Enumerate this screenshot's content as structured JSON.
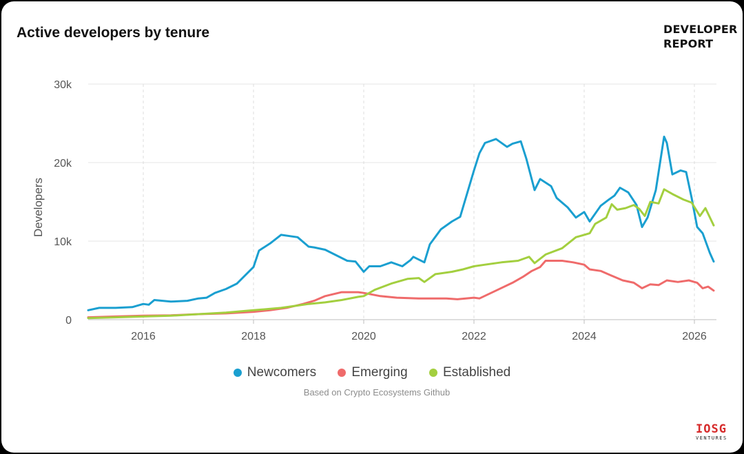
{
  "title": "Active developers by tenure",
  "brand": {
    "line1": "DEVELOPER",
    "line2": "REPORT"
  },
  "source_note": "Based on Crypto Ecosystems Github",
  "logo": {
    "main": "IOSG",
    "sub": "VENTURES"
  },
  "chart_data": {
    "type": "line",
    "title": "Active developers by tenure",
    "xlabel": "",
    "ylabel": "Developers",
    "xlim": [
      2015.0,
      2026.4
    ],
    "ylim": [
      0,
      30000
    ],
    "x_ticks": [
      2016,
      2018,
      2020,
      2022,
      2024,
      2026
    ],
    "x_tick_labels": [
      "2016",
      "2018",
      "2020",
      "2022",
      "2024",
      "2026"
    ],
    "y_ticks": [
      0,
      10000,
      20000,
      30000
    ],
    "y_tick_labels": [
      "0",
      "10k",
      "20k",
      "30k"
    ],
    "grid": {
      "y": "solid",
      "x": "dashed"
    },
    "legend_position": "bottom-center",
    "series": [
      {
        "name": "Newcomers",
        "color": "#1a9fd0",
        "points": [
          [
            2015.0,
            1200
          ],
          [
            2015.2,
            1500
          ],
          [
            2015.5,
            1500
          ],
          [
            2015.8,
            1600
          ],
          [
            2016.0,
            2000
          ],
          [
            2016.1,
            1900
          ],
          [
            2016.2,
            2500
          ],
          [
            2016.5,
            2300
          ],
          [
            2016.8,
            2400
          ],
          [
            2017.0,
            2700
          ],
          [
            2017.15,
            2800
          ],
          [
            2017.3,
            3400
          ],
          [
            2017.5,
            3900
          ],
          [
            2017.7,
            4600
          ],
          [
            2017.9,
            6000
          ],
          [
            2018.0,
            6700
          ],
          [
            2018.1,
            8800
          ],
          [
            2018.3,
            9700
          ],
          [
            2018.5,
            10800
          ],
          [
            2018.7,
            10600
          ],
          [
            2018.8,
            10500
          ],
          [
            2019.0,
            9300
          ],
          [
            2019.1,
            9200
          ],
          [
            2019.3,
            8900
          ],
          [
            2019.5,
            8200
          ],
          [
            2019.7,
            7500
          ],
          [
            2019.85,
            7400
          ],
          [
            2020.0,
            6100
          ],
          [
            2020.1,
            6800
          ],
          [
            2020.3,
            6800
          ],
          [
            2020.5,
            7300
          ],
          [
            2020.7,
            6800
          ],
          [
            2020.85,
            7600
          ],
          [
            2020.9,
            8000
          ],
          [
            2021.1,
            7300
          ],
          [
            2021.2,
            9600
          ],
          [
            2021.4,
            11500
          ],
          [
            2021.6,
            12500
          ],
          [
            2021.75,
            13100
          ],
          [
            2022.0,
            19000
          ],
          [
            2022.1,
            21200
          ],
          [
            2022.2,
            22500
          ],
          [
            2022.4,
            23000
          ],
          [
            2022.6,
            22000
          ],
          [
            2022.7,
            22400
          ],
          [
            2022.85,
            22700
          ],
          [
            2022.95,
            20500
          ],
          [
            2023.1,
            16500
          ],
          [
            2023.2,
            17900
          ],
          [
            2023.4,
            17000
          ],
          [
            2023.5,
            15500
          ],
          [
            2023.7,
            14300
          ],
          [
            2023.85,
            13000
          ],
          [
            2024.0,
            13700
          ],
          [
            2024.1,
            12500
          ],
          [
            2024.3,
            14500
          ],
          [
            2024.45,
            15300
          ],
          [
            2024.55,
            15800
          ],
          [
            2024.65,
            16800
          ],
          [
            2024.8,
            16200
          ],
          [
            2024.95,
            14600
          ],
          [
            2025.05,
            11800
          ],
          [
            2025.15,
            13000
          ],
          [
            2025.3,
            16500
          ],
          [
            2025.45,
            23300
          ],
          [
            2025.5,
            22500
          ],
          [
            2025.6,
            18500
          ],
          [
            2025.75,
            19000
          ],
          [
            2025.85,
            18800
          ],
          [
            2025.95,
            15500
          ],
          [
            2026.05,
            11800
          ],
          [
            2026.15,
            11000
          ],
          [
            2026.28,
            8500
          ],
          [
            2026.35,
            7400
          ]
        ]
      },
      {
        "name": "Emerging",
        "color": "#ef6b6b",
        "points": [
          [
            2015.0,
            300
          ],
          [
            2015.5,
            400
          ],
          [
            2016.0,
            500
          ],
          [
            2016.5,
            550
          ],
          [
            2017.0,
            700
          ],
          [
            2017.5,
            800
          ],
          [
            2018.0,
            1000
          ],
          [
            2018.3,
            1200
          ],
          [
            2018.6,
            1500
          ],
          [
            2018.9,
            2000
          ],
          [
            2019.1,
            2400
          ],
          [
            2019.3,
            3000
          ],
          [
            2019.6,
            3500
          ],
          [
            2019.9,
            3500
          ],
          [
            2020.0,
            3400
          ],
          [
            2020.3,
            3000
          ],
          [
            2020.6,
            2800
          ],
          [
            2021.0,
            2700
          ],
          [
            2021.5,
            2700
          ],
          [
            2021.7,
            2600
          ],
          [
            2022.0,
            2800
          ],
          [
            2022.1,
            2700
          ],
          [
            2022.4,
            3700
          ],
          [
            2022.7,
            4700
          ],
          [
            2022.9,
            5500
          ],
          [
            2023.05,
            6200
          ],
          [
            2023.2,
            6700
          ],
          [
            2023.3,
            7500
          ],
          [
            2023.6,
            7500
          ],
          [
            2023.8,
            7300
          ],
          [
            2024.0,
            7000
          ],
          [
            2024.1,
            6400
          ],
          [
            2024.3,
            6200
          ],
          [
            2024.5,
            5600
          ],
          [
            2024.7,
            5000
          ],
          [
            2024.9,
            4700
          ],
          [
            2025.05,
            4000
          ],
          [
            2025.2,
            4500
          ],
          [
            2025.35,
            4400
          ],
          [
            2025.5,
            5000
          ],
          [
            2025.7,
            4800
          ],
          [
            2025.9,
            5000
          ],
          [
            2026.05,
            4700
          ],
          [
            2026.15,
            4000
          ],
          [
            2026.25,
            4200
          ],
          [
            2026.35,
            3700
          ]
        ]
      },
      {
        "name": "Established",
        "color": "#a3cf3f",
        "points": [
          [
            2015.0,
            200
          ],
          [
            2015.5,
            300
          ],
          [
            2016.0,
            400
          ],
          [
            2016.5,
            500
          ],
          [
            2017.0,
            700
          ],
          [
            2017.5,
            900
          ],
          [
            2018.0,
            1200
          ],
          [
            2018.5,
            1500
          ],
          [
            2018.8,
            1800
          ],
          [
            2019.0,
            2000
          ],
          [
            2019.3,
            2200
          ],
          [
            2019.6,
            2500
          ],
          [
            2019.9,
            2900
          ],
          [
            2020.0,
            3000
          ],
          [
            2020.2,
            3800
          ],
          [
            2020.5,
            4600
          ],
          [
            2020.8,
            5200
          ],
          [
            2021.0,
            5300
          ],
          [
            2021.1,
            4800
          ],
          [
            2021.3,
            5800
          ],
          [
            2021.6,
            6100
          ],
          [
            2021.8,
            6400
          ],
          [
            2022.0,
            6800
          ],
          [
            2022.2,
            7000
          ],
          [
            2022.5,
            7300
          ],
          [
            2022.8,
            7500
          ],
          [
            2023.0,
            8000
          ],
          [
            2023.1,
            7200
          ],
          [
            2023.3,
            8300
          ],
          [
            2023.6,
            9100
          ],
          [
            2023.85,
            10500
          ],
          [
            2024.0,
            10800
          ],
          [
            2024.1,
            11000
          ],
          [
            2024.2,
            12200
          ],
          [
            2024.4,
            13000
          ],
          [
            2024.5,
            14700
          ],
          [
            2024.6,
            14000
          ],
          [
            2024.75,
            14200
          ],
          [
            2024.9,
            14600
          ],
          [
            2025.0,
            14100
          ],
          [
            2025.1,
            13200
          ],
          [
            2025.2,
            15000
          ],
          [
            2025.35,
            14800
          ],
          [
            2025.45,
            16600
          ],
          [
            2025.6,
            16000
          ],
          [
            2025.8,
            15300
          ],
          [
            2025.95,
            14900
          ],
          [
            2026.1,
            13200
          ],
          [
            2026.2,
            14200
          ],
          [
            2026.35,
            12000
          ]
        ]
      }
    ]
  }
}
